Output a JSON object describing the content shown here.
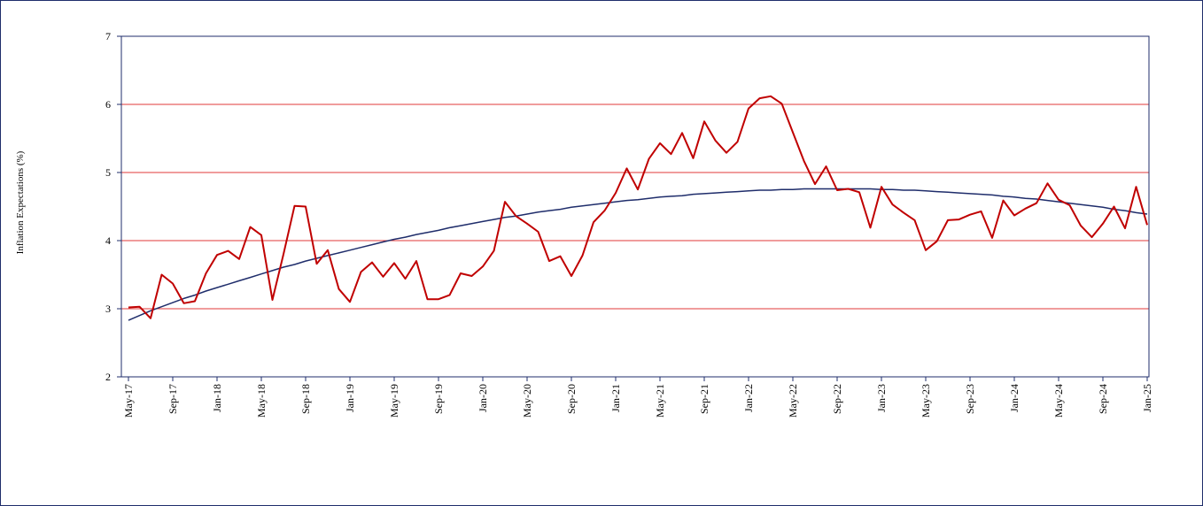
{
  "chart_data": {
    "type": "line",
    "title": "",
    "xlabel": "",
    "ylabel": "Inflation  Expectations (%)",
    "ylim": [
      2,
      7
    ],
    "yticks": [
      2,
      3,
      4,
      5,
      6,
      7
    ],
    "grid": true,
    "colors": {
      "actual": "#c00000",
      "trend": "#1f2d6b",
      "grid": "#e03a3a",
      "axis": "#1f2d6b"
    },
    "x_tick_labels": [
      "May-17",
      "Sep-17",
      "Jan-18",
      "May-18",
      "Sep-18",
      "Jan-19",
      "May-19",
      "Sep-19",
      "Jan-20",
      "May-20",
      "Sep-20",
      "Jan-21",
      "May-21",
      "Sep-21",
      "Jan-22",
      "May-22",
      "Sep-22",
      "Jan-23",
      "May-23",
      "Sep-23",
      "Jan-24",
      "May-24",
      "Sep-24",
      "Jan-25"
    ],
    "x": [
      "May-17",
      "Jun-17",
      "Jul-17",
      "Aug-17",
      "Sep-17",
      "Oct-17",
      "Nov-17",
      "Dec-17",
      "Jan-18",
      "Feb-18",
      "Mar-18",
      "Apr-18",
      "May-18",
      "Jun-18",
      "Jul-18",
      "Aug-18",
      "Sep-18",
      "Oct-18",
      "Nov-18",
      "Dec-18",
      "Jan-19",
      "Feb-19",
      "Mar-19",
      "Apr-19",
      "May-19",
      "Jun-19",
      "Jul-19",
      "Aug-19",
      "Sep-19",
      "Oct-19",
      "Nov-19",
      "Dec-19",
      "Jan-20",
      "Feb-20",
      "Mar-20",
      "Apr-20",
      "May-20",
      "Jun-20",
      "Jul-20",
      "Aug-20",
      "Sep-20",
      "Oct-20",
      "Nov-20",
      "Dec-20",
      "Jan-21",
      "Feb-21",
      "Mar-21",
      "Apr-21",
      "May-21",
      "Jun-21",
      "Jul-21",
      "Aug-21",
      "Sep-21",
      "Oct-21",
      "Nov-21",
      "Dec-21",
      "Jan-22",
      "Feb-22",
      "Mar-22",
      "Apr-22",
      "May-22",
      "Jun-22",
      "Jul-22",
      "Aug-22",
      "Sep-22",
      "Oct-22",
      "Nov-22",
      "Dec-22",
      "Jan-23",
      "Feb-23",
      "Mar-23",
      "Apr-23",
      "May-23",
      "Jun-23",
      "Jul-23",
      "Aug-23",
      "Sep-23",
      "Oct-23",
      "Nov-23",
      "Dec-23",
      "Jan-24",
      "Feb-24",
      "Mar-24",
      "Apr-24",
      "May-24",
      "Jun-24",
      "Jul-24",
      "Aug-24",
      "Sep-24",
      "Oct-24",
      "Nov-24",
      "Dec-24",
      "Jan-25"
    ],
    "series": [
      {
        "values": [
          3.02,
          3.03,
          2.86,
          3.5,
          3.37,
          3.08,
          3.11,
          3.52,
          3.79,
          3.85,
          3.73,
          4.2,
          4.08,
          3.13,
          3.8,
          4.51,
          4.5,
          3.66,
          3.86,
          3.29,
          3.1,
          3.54,
          3.68,
          3.47,
          3.67,
          3.44,
          3.7,
          3.14,
          3.14,
          3.2,
          3.52,
          3.48,
          3.62,
          3.85,
          4.57,
          4.36,
          4.25,
          4.13,
          3.7,
          3.77,
          3.48,
          3.78,
          4.27,
          4.44,
          4.7,
          5.06,
          4.75,
          5.2,
          5.43,
          5.27,
          5.58,
          5.21,
          5.75,
          5.47,
          5.29,
          5.45,
          5.94,
          6.09,
          6.12,
          6.01,
          5.59,
          5.17,
          4.83,
          5.09,
          4.74,
          4.76,
          4.71,
          4.19,
          4.79,
          4.53,
          4.41,
          4.3,
          3.86,
          3.99,
          4.3,
          4.31,
          4.38,
          4.43,
          4.04,
          4.59,
          4.37,
          4.47,
          4.55,
          4.84,
          4.6,
          4.52,
          4.22,
          4.05,
          4.25,
          4.5,
          4.18,
          4.79,
          4.23
        ]
      },
      {
        "values": [
          2.83,
          2.9,
          2.97,
          3.03,
          3.09,
          3.15,
          3.2,
          3.26,
          3.31,
          3.36,
          3.41,
          3.46,
          3.51,
          3.56,
          3.61,
          3.65,
          3.7,
          3.74,
          3.78,
          3.82,
          3.86,
          3.9,
          3.94,
          3.98,
          4.02,
          4.05,
          4.09,
          4.12,
          4.15,
          4.19,
          4.22,
          4.25,
          4.28,
          4.31,
          4.34,
          4.36,
          4.39,
          4.42,
          4.44,
          4.46,
          4.49,
          4.51,
          4.53,
          4.55,
          4.57,
          4.59,
          4.6,
          4.62,
          4.64,
          4.65,
          4.66,
          4.68,
          4.69,
          4.7,
          4.71,
          4.72,
          4.73,
          4.74,
          4.74,
          4.75,
          4.75,
          4.76,
          4.76,
          4.76,
          4.76,
          4.76,
          4.76,
          4.76,
          4.75,
          4.75,
          4.74,
          4.74,
          4.73,
          4.72,
          4.71,
          4.7,
          4.69,
          4.68,
          4.67,
          4.65,
          4.64,
          4.62,
          4.61,
          4.59,
          4.57,
          4.55,
          4.53,
          4.51,
          4.49,
          4.46,
          4.44,
          4.41,
          4.39
        ]
      }
    ]
  }
}
